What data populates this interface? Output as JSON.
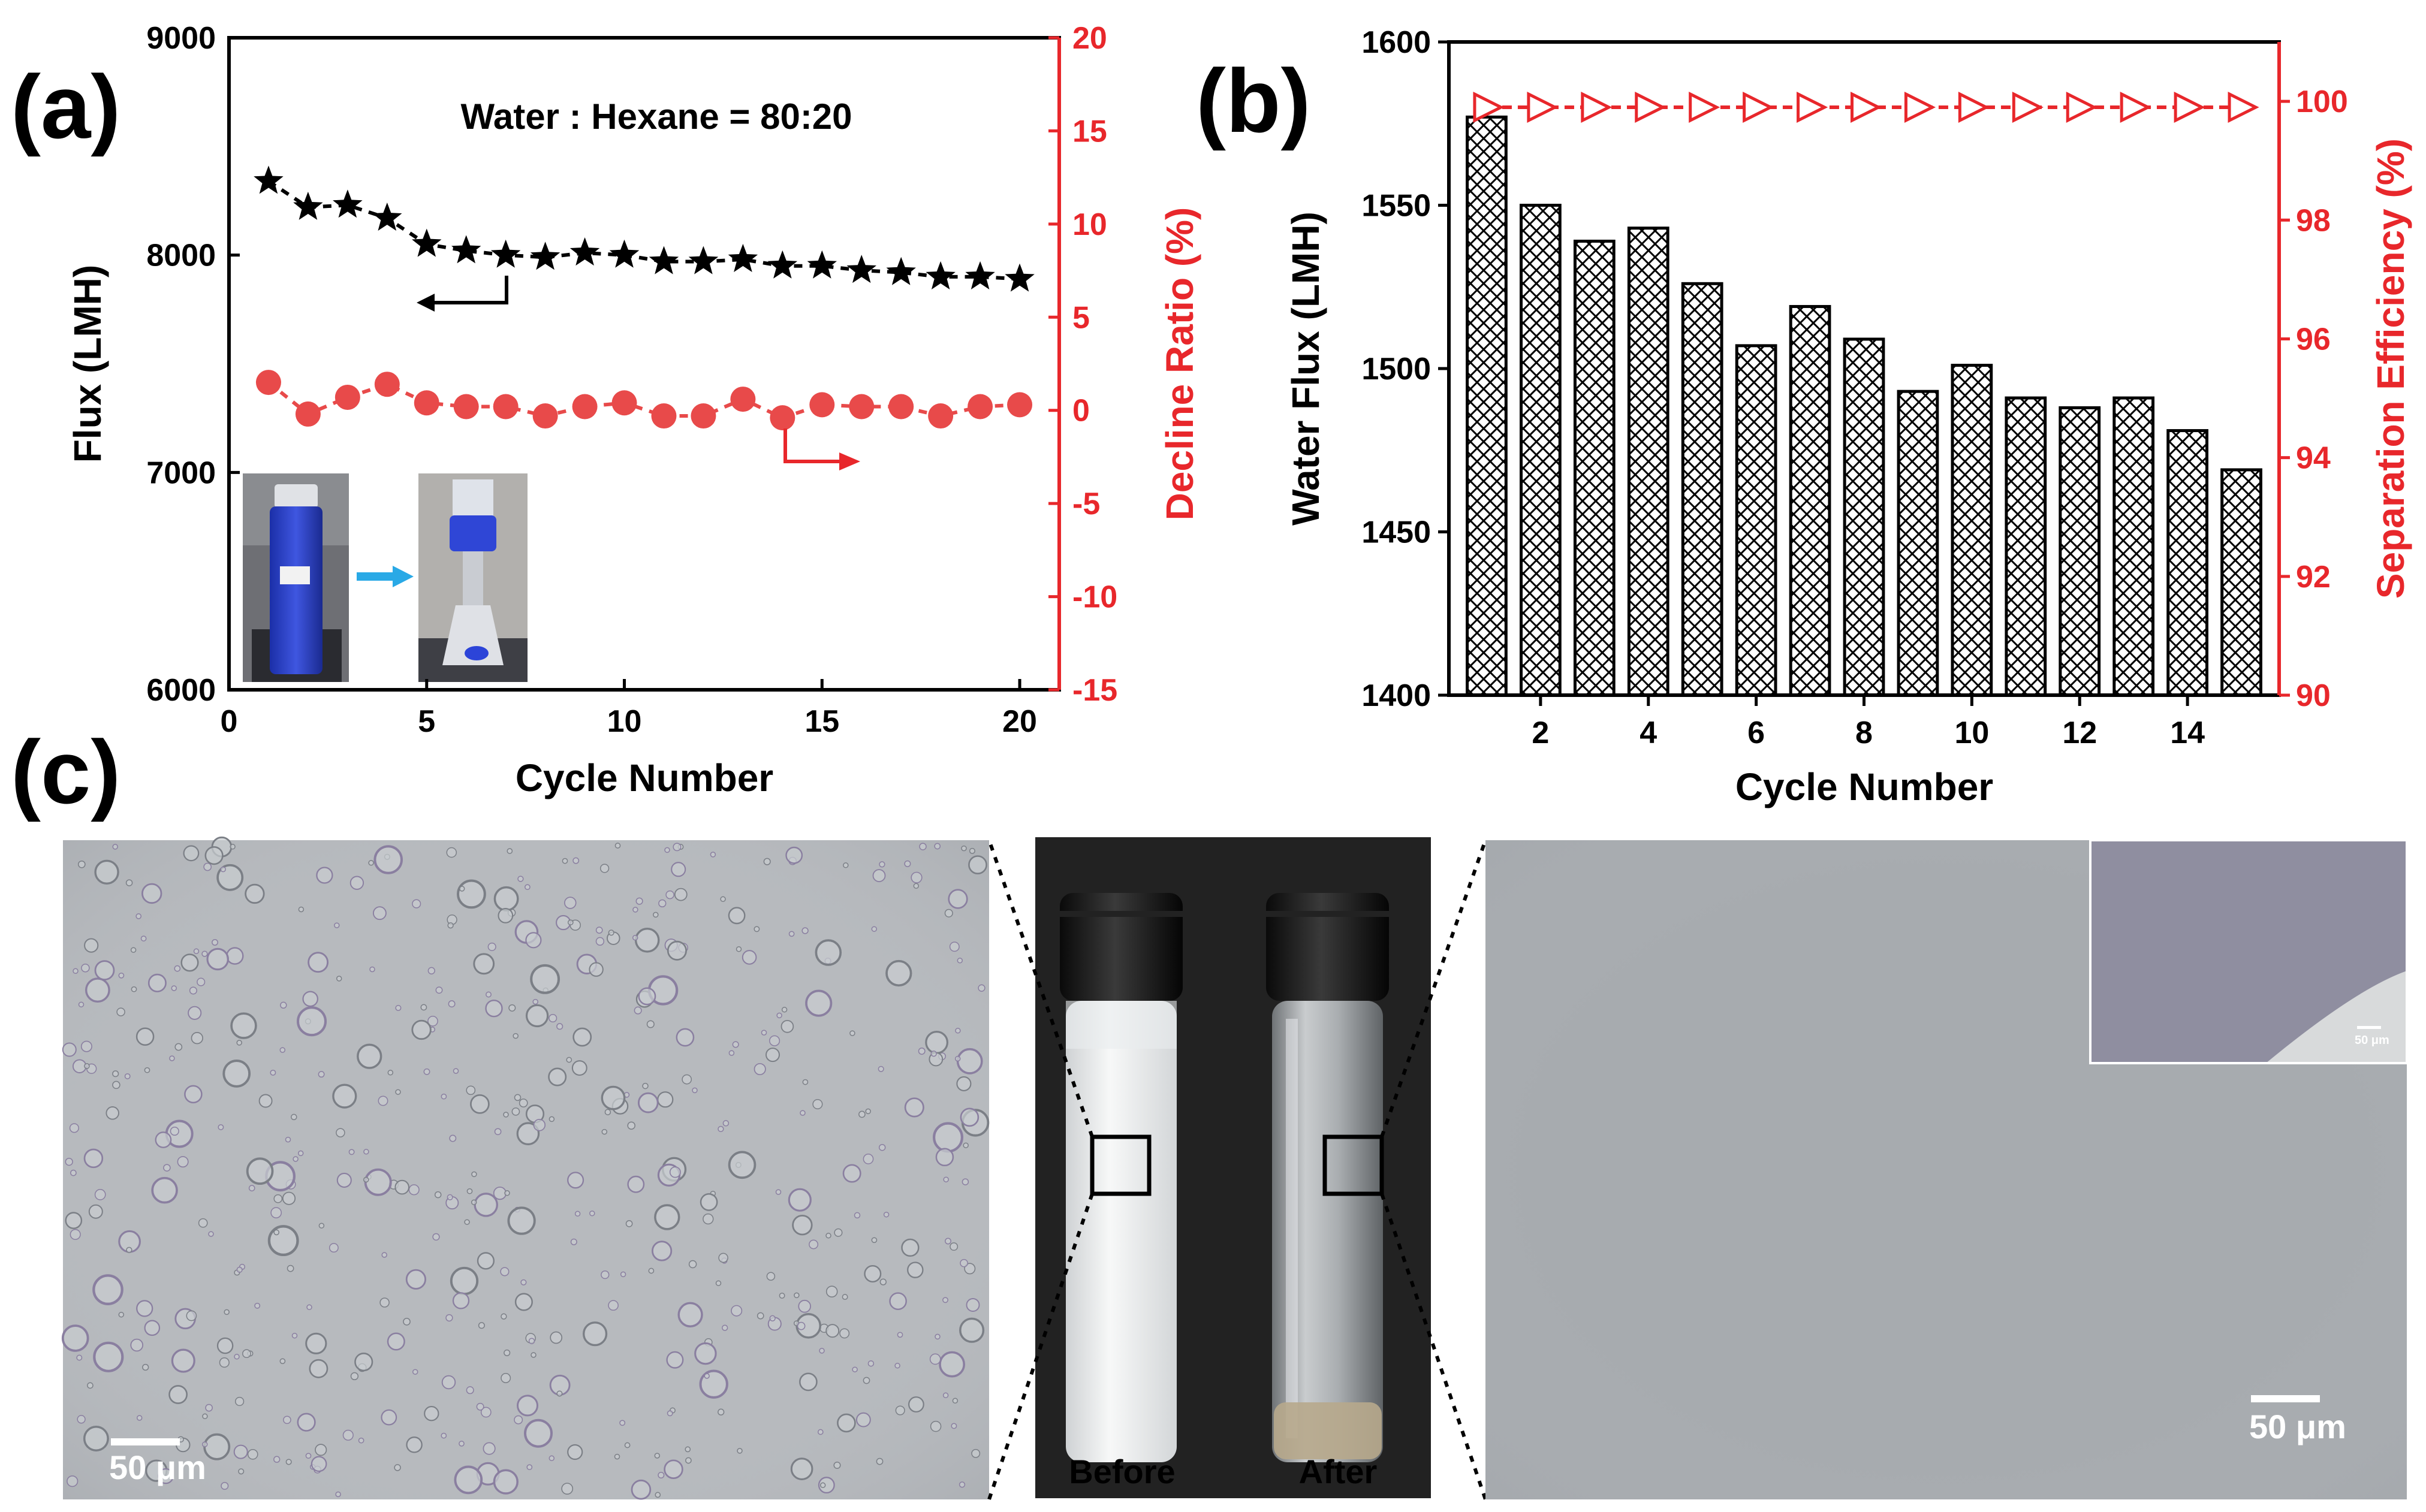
{
  "panels": {
    "a": {
      "label": "(a)"
    },
    "b": {
      "label": "(b)"
    },
    "c": {
      "label": "(c)"
    }
  },
  "chart_data": [
    {
      "type": "scatter",
      "panel": "a",
      "annotation": "Water : Hexane = 80:20",
      "xlabel": "Cycle Number",
      "ylabel_left": "Flux (LMH)",
      "ylabel_right": "Decline Ratio (%)",
      "xlim": [
        0,
        21
      ],
      "ylim_left": [
        6000,
        9000
      ],
      "ylim_right": [
        -15,
        20
      ],
      "xticks": [
        "0",
        "5",
        "10",
        "15",
        "20"
      ],
      "yticks_left": [
        "6000",
        "7000",
        "8000",
        "9000"
      ],
      "yticks_right": [
        "-15",
        "-10",
        "-5",
        "0",
        "5",
        "10",
        "15",
        "20"
      ],
      "colors": {
        "flux": "#000000",
        "decline": "#e84a4a",
        "right_axis": "#e8272b"
      },
      "series": [
        {
          "axis": "left",
          "marker": "star",
          "x": [
            1,
            2,
            3,
            4,
            5,
            6,
            7,
            8,
            9,
            10,
            11,
            12,
            13,
            14,
            15,
            16,
            17,
            18,
            19,
            20
          ],
          "values": [
            8340,
            8220,
            8230,
            8170,
            8050,
            8020,
            8000,
            7990,
            8010,
            8000,
            7970,
            7970,
            7980,
            7950,
            7950,
            7930,
            7920,
            7900,
            7900,
            7890
          ]
        },
        {
          "axis": "right",
          "marker": "circle",
          "x": [
            1,
            2,
            3,
            4,
            5,
            6,
            7,
            8,
            9,
            10,
            11,
            12,
            13,
            14,
            15,
            16,
            17,
            18,
            19,
            20
          ],
          "values": [
            1.5,
            -0.2,
            0.7,
            1.4,
            0.4,
            0.2,
            0.2,
            -0.3,
            0.2,
            0.4,
            -0.3,
            -0.3,
            0.6,
            -0.4,
            0.3,
            0.2,
            0.2,
            -0.3,
            0.2,
            0.3
          ]
        }
      ]
    },
    {
      "type": "bar",
      "panel": "b",
      "xlabel": "Cycle Number",
      "ylabel_left": "Water Flux (LMH)",
      "ylabel_right": "Separation Efficiency (%)",
      "xlim": [
        0.3,
        15.7
      ],
      "ylim_left": [
        1400,
        1600
      ],
      "ylim_right": [
        90,
        101
      ],
      "xticks": [
        "2",
        "4",
        "6",
        "8",
        "10",
        "12",
        "14"
      ],
      "yticks_left": [
        "1400",
        "1450",
        "1500",
        "1550",
        "1600"
      ],
      "yticks_right": [
        "90",
        "92",
        "94",
        "96",
        "98",
        "100"
      ],
      "colors": {
        "bars": "#000000",
        "efficiency": "#e8272b"
      },
      "categories": [
        1,
        2,
        3,
        4,
        5,
        6,
        7,
        8,
        9,
        10,
        11,
        12,
        13,
        14,
        15
      ],
      "series": [
        {
          "axis": "left",
          "values": [
            1577,
            1550,
            1539,
            1543,
            1526,
            1507,
            1519,
            1509,
            1493,
            1501,
            1491,
            1488,
            1491,
            1481,
            1469
          ]
        },
        {
          "axis": "right",
          "marker": "triangle-right",
          "values": [
            99.9,
            99.9,
            99.9,
            99.9,
            99.9,
            99.9,
            99.9,
            99.9,
            99.9,
            99.9,
            99.9,
            99.9,
            99.9,
            99.9,
            99.9
          ]
        }
      ]
    }
  ],
  "photos": {
    "before_label": "Before",
    "after_label": "After",
    "scale_bar_left": "50 μm",
    "scale_bar_right": "50 μm",
    "scale_bar_inset": "50 μm"
  }
}
